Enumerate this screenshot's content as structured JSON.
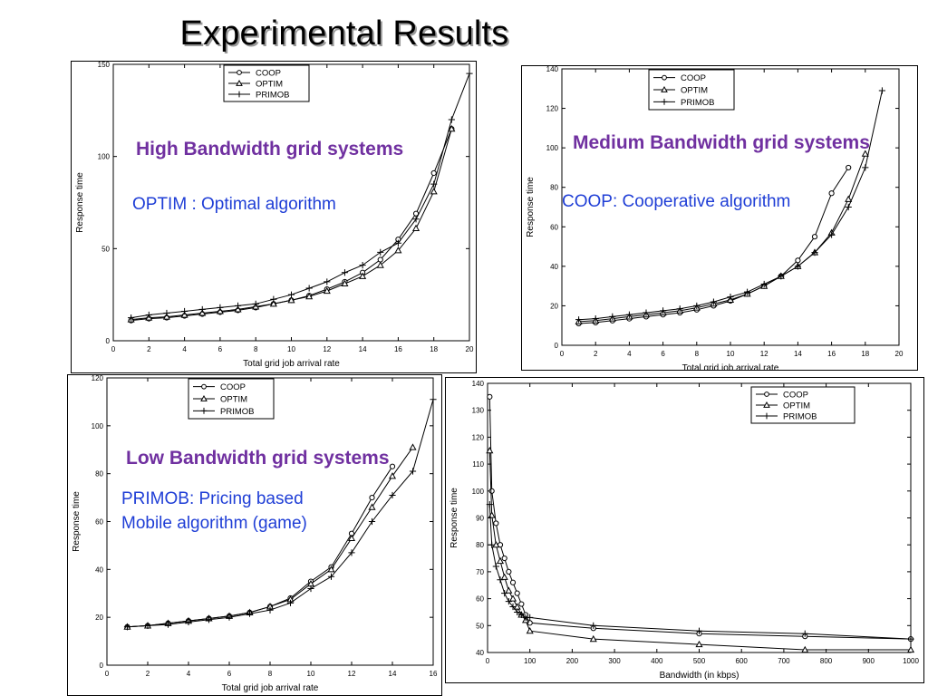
{
  "slide": {
    "title": "Experimental Results",
    "panel_titles": {
      "high": "High Bandwidth grid systems",
      "medium": "Medium Bandwidth grid systems",
      "low": "Low Bandwidth grid systems"
    },
    "definitions": {
      "optim": "OPTIM : Optimal algorithm",
      "coop": "COOP: Cooperative algorithm",
      "primob_line1": "PRIMOB: Pricing based",
      "primob_line2": "Mobile algorithm (game)"
    },
    "colors": {
      "title_purple": "#7030a0",
      "definition_blue": "#1f3ed6",
      "line": "#000000"
    }
  },
  "chart_data": [
    {
      "type": "line",
      "xlabel": "Total grid job arrival rate",
      "ylabel": "Response time",
      "xlim": [
        0,
        20
      ],
      "ylim": [
        0,
        150
      ],
      "xticks": [
        0,
        2,
        4,
        6,
        8,
        10,
        12,
        14,
        16,
        18,
        20
      ],
      "yticks": [
        0,
        50,
        100,
        150
      ],
      "legend_position": "top-center",
      "series": [
        {
          "name": "COOP",
          "marker": "circle",
          "x": [
            1,
            2,
            3,
            4,
            5,
            6,
            7,
            8,
            9,
            10,
            11,
            12,
            13,
            14,
            15,
            16,
            17,
            18,
            19
          ],
          "y": [
            11,
            12,
            12.5,
            13.5,
            14.5,
            15.5,
            16.5,
            18,
            20,
            22,
            24.5,
            28,
            32,
            37,
            44,
            55,
            69,
            91,
            115
          ]
        },
        {
          "name": "OPTIM",
          "marker": "triangle",
          "x": [
            1,
            2,
            3,
            4,
            5,
            6,
            7,
            8,
            9,
            10,
            11,
            12,
            13,
            14,
            15,
            16,
            17,
            18,
            19
          ],
          "y": [
            11.5,
            12.5,
            13,
            14,
            15,
            16,
            17,
            18.5,
            20,
            22,
            24,
            27,
            31,
            35,
            41,
            49,
            61,
            81,
            115
          ]
        },
        {
          "name": "PRIMOB",
          "marker": "plus",
          "x": [
            1,
            2,
            3,
            4,
            5,
            6,
            7,
            8,
            9,
            10,
            11,
            12,
            13,
            14,
            15,
            16,
            17,
            18,
            19,
            20
          ],
          "y": [
            12.5,
            14,
            15,
            16,
            17,
            18,
            19,
            20,
            22.5,
            25,
            28.5,
            32,
            37,
            41,
            48,
            53,
            66,
            85,
            120,
            145
          ]
        }
      ]
    },
    {
      "type": "line",
      "xlabel": "Total grid job arrival rate",
      "ylabel": "Response time",
      "xlim": [
        0,
        20
      ],
      "ylim": [
        0,
        140
      ],
      "xticks": [
        0,
        2,
        4,
        6,
        8,
        10,
        12,
        14,
        16,
        18,
        20
      ],
      "yticks": [
        0,
        20,
        40,
        60,
        80,
        100,
        120,
        140
      ],
      "legend_position": "top-center",
      "series": [
        {
          "name": "COOP",
          "marker": "circle",
          "x": [
            1,
            2,
            3,
            4,
            5,
            6,
            7,
            8,
            9,
            10,
            11,
            12,
            13,
            14,
            15,
            16,
            17
          ],
          "y": [
            11,
            11.5,
            12.5,
            13.5,
            14.5,
            15.5,
            16.5,
            18,
            20,
            22.5,
            26,
            30,
            35,
            43,
            55,
            77,
            90
          ]
        },
        {
          "name": "OPTIM",
          "marker": "triangle",
          "x": [
            1,
            2,
            3,
            4,
            5,
            6,
            7,
            8,
            9,
            10,
            11,
            12,
            13,
            14,
            15,
            16,
            17,
            18
          ],
          "y": [
            12,
            12.5,
            13.5,
            14.5,
            15.5,
            16.5,
            17.5,
            19,
            21,
            23,
            26,
            30,
            35,
            40,
            47,
            57,
            74,
            97
          ]
        },
        {
          "name": "PRIMOB",
          "marker": "plus",
          "x": [
            1,
            2,
            3,
            4,
            5,
            6,
            7,
            8,
            9,
            10,
            11,
            12,
            13,
            14,
            15,
            16,
            17,
            18,
            19
          ],
          "y": [
            13,
            13.5,
            14.5,
            15.5,
            16.5,
            17.5,
            18.5,
            20,
            22,
            24.5,
            27,
            31,
            35,
            40,
            47,
            56,
            70,
            90,
            129
          ]
        }
      ]
    },
    {
      "type": "line",
      "xlabel": "Total grid job arrival rate",
      "ylabel": "Response time",
      "xlim": [
        0,
        16
      ],
      "ylim": [
        0,
        120
      ],
      "xticks": [
        0,
        2,
        4,
        6,
        8,
        10,
        12,
        14,
        16
      ],
      "yticks": [
        0,
        20,
        40,
        60,
        80,
        100,
        120
      ],
      "legend_position": "top-center",
      "series": [
        {
          "name": "COOP",
          "marker": "circle",
          "x": [
            1,
            2,
            3,
            4,
            5,
            6,
            7,
            8,
            9,
            10,
            11,
            12,
            13,
            14
          ],
          "y": [
            16,
            16.5,
            17.5,
            18.5,
            19.5,
            20.5,
            22,
            24.5,
            28,
            35,
            41,
            55,
            70,
            83
          ]
        },
        {
          "name": "OPTIM",
          "marker": "triangle",
          "x": [
            1,
            2,
            3,
            4,
            5,
            6,
            7,
            8,
            9,
            10,
            11,
            12,
            13,
            14,
            15
          ],
          "y": [
            16,
            16.5,
            17.5,
            18.5,
            19.5,
            20.5,
            22,
            24.5,
            27.5,
            34,
            40,
            53,
            66,
            79,
            91
          ]
        },
        {
          "name": "PRIMOB",
          "marker": "plus",
          "x": [
            1,
            2,
            3,
            4,
            5,
            6,
            7,
            8,
            9,
            10,
            11,
            12,
            13,
            14,
            15,
            16
          ],
          "y": [
            16,
            16.5,
            17,
            18,
            19,
            20,
            21.5,
            23,
            26,
            32,
            37,
            47,
            60,
            71,
            81,
            111
          ]
        }
      ]
    },
    {
      "type": "line",
      "xlabel": "Bandwidth (in kbps)",
      "ylabel": "Response time",
      "xlim": [
        0,
        1000
      ],
      "ylim": [
        40,
        140
      ],
      "xticks": [
        0,
        100,
        200,
        300,
        400,
        500,
        600,
        700,
        800,
        900,
        1000
      ],
      "yticks": [
        40,
        50,
        60,
        70,
        80,
        90,
        100,
        110,
        120,
        130,
        140
      ],
      "legend_position": "top-right",
      "series": [
        {
          "name": "COOP",
          "marker": "circle",
          "x": [
            5,
            10,
            20,
            30,
            40,
            50,
            60,
            70,
            80,
            90,
            100,
            250,
            500,
            750,
            1000
          ],
          "y": [
            135,
            100,
            88,
            80,
            75,
            70,
            66,
            62,
            58,
            54,
            51,
            49,
            47,
            46,
            45
          ]
        },
        {
          "name": "OPTIM",
          "marker": "triangle",
          "x": [
            5,
            10,
            20,
            30,
            40,
            50,
            60,
            70,
            80,
            90,
            100,
            250,
            500,
            750,
            1000
          ],
          "y": [
            115,
            91,
            80,
            74,
            68,
            63,
            60,
            57,
            54,
            52,
            48,
            45,
            43,
            41,
            41
          ]
        },
        {
          "name": "PRIMOB",
          "marker": "plus",
          "x": [
            5,
            10,
            20,
            30,
            40,
            50,
            60,
            70,
            80,
            90,
            100,
            250,
            500,
            750,
            1000
          ],
          "y": [
            95,
            80,
            72,
            67,
            62,
            59,
            57,
            55,
            54,
            53,
            53,
            50,
            48,
            47,
            45
          ]
        }
      ]
    }
  ]
}
